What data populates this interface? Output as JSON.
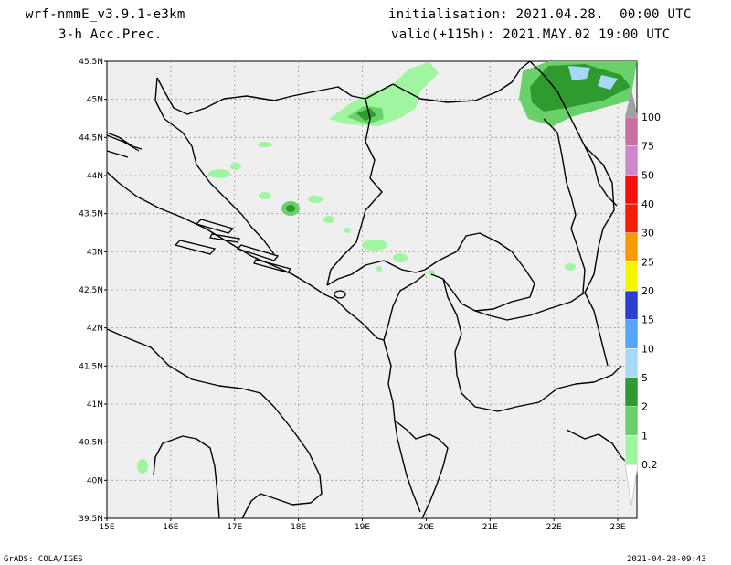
{
  "header": {
    "model": "wrf-nmmE_v3.9.1-e3km",
    "field": "3-h Acc.Prec.",
    "init": "initialisation: 2021.04.28.  00:00 UTC",
    "valid": "valid(+115h): 2021.MAY.02 19:00 UTC"
  },
  "map": {
    "lat_labels": [
      "45.5N",
      "45N",
      "44.5N",
      "44N",
      "43.5N",
      "43N",
      "42.5N",
      "42N",
      "41.5N",
      "41N",
      "40.5N",
      "40N",
      "39.5N"
    ],
    "lon_labels": [
      "15E",
      "16E",
      "17E",
      "18E",
      "19E",
      "20E",
      "21E",
      "22E",
      "23E"
    ],
    "extent": {
      "lon_min": 15,
      "lon_max": 23.3,
      "lat_min": 39.5,
      "lat_max": 45.5
    }
  },
  "legend": {
    "levels": [
      "0.2",
      "1",
      "2",
      "5",
      "10",
      "15",
      "20",
      "25",
      "30",
      "40",
      "50",
      "75",
      "100"
    ],
    "colors": [
      "#a0f5a0",
      "#6ad06a",
      "#2f9a2f",
      "#a8d8f8",
      "#56a6f6",
      "#2c3fd0",
      "#f5f500",
      "#f59a00",
      "#f51e00",
      "#f51010",
      "#cc88cc",
      "#c870a0",
      "#9a009a",
      "#a0a0a0"
    ]
  },
  "footer": {
    "left": "GrADS: COLA/IGES",
    "right": "2021-04-28-09:43"
  }
}
